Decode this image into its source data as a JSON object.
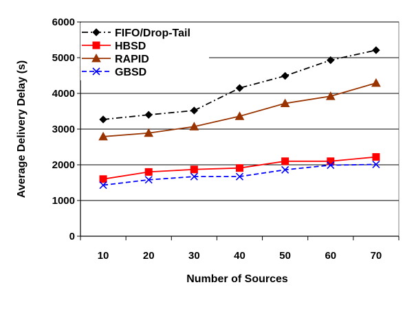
{
  "chart_data": {
    "type": "line",
    "xlabel": "Number of Sources",
    "ylabel": "Average Delivery Delay (s)",
    "categories": [
      "10",
      "20",
      "30",
      "40",
      "50",
      "60",
      "70"
    ],
    "ylim": [
      0,
      6000
    ],
    "yticks": [
      "0",
      "1000",
      "2000",
      "3000",
      "4000",
      "5000",
      "6000"
    ],
    "grid": "horizontal",
    "legend_position": "top-left",
    "series": [
      {
        "name": "FIFO/Drop-Tail",
        "values": [
          3270,
          3400,
          3520,
          4150,
          4490,
          4930,
          5210
        ],
        "color": "#000000",
        "marker": "diamond",
        "dash": "dash-dot"
      },
      {
        "name": "HBSD",
        "values": [
          1600,
          1800,
          1870,
          1910,
          2100,
          2100,
          2220
        ],
        "color": "#ff0000",
        "marker": "square",
        "dash": "solid"
      },
      {
        "name": "RAPID",
        "values": [
          2790,
          2890,
          3070,
          3360,
          3720,
          3920,
          4290
        ],
        "color": "#993300",
        "marker": "triangle",
        "dash": "solid"
      },
      {
        "name": "GBSD",
        "values": [
          1430,
          1580,
          1670,
          1670,
          1860,
          1990,
          2010
        ],
        "color": "#0000ff",
        "marker": "x",
        "dash": "dashed"
      }
    ]
  }
}
